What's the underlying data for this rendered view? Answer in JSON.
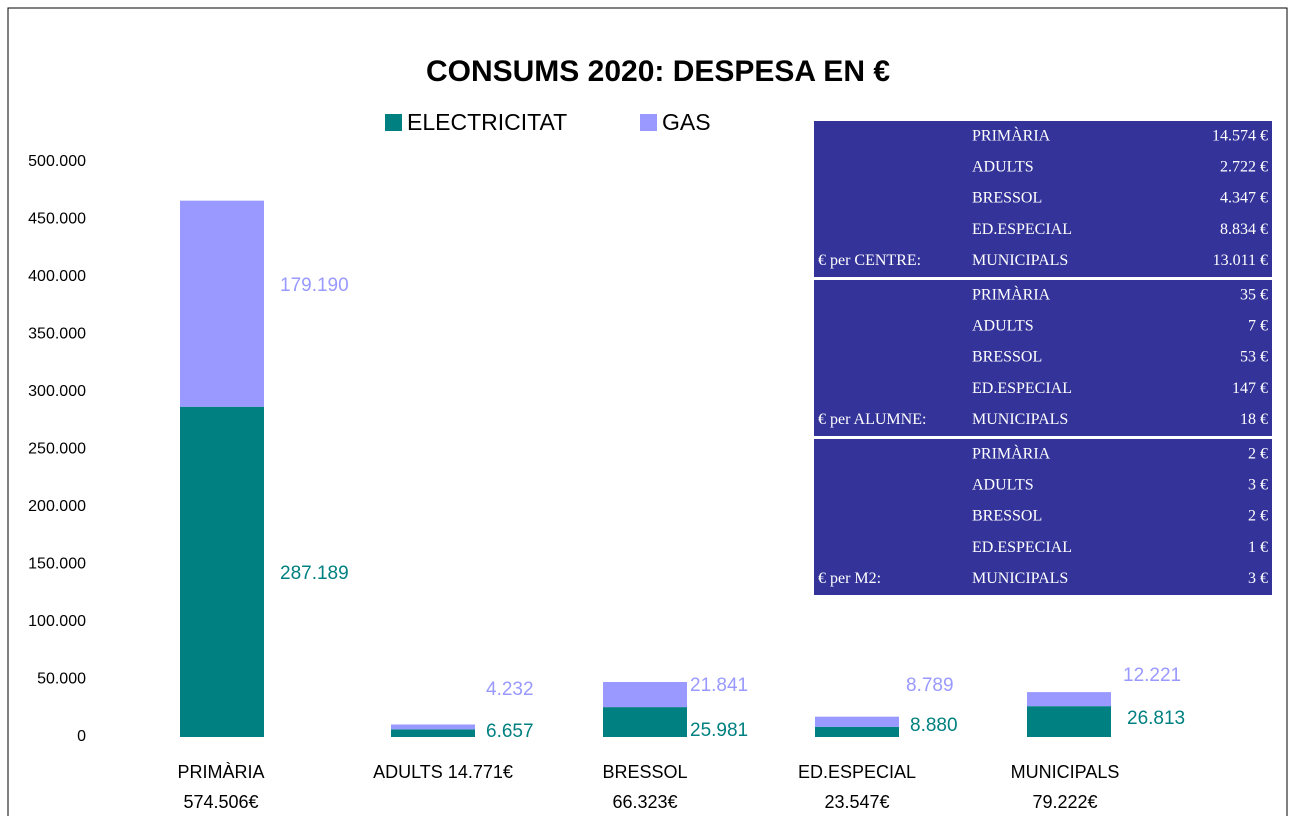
{
  "chart_data": {
    "type": "bar",
    "stacked": true,
    "title": "CONSUMS 2020: DESPESA EN €",
    "categories": [
      [
        "PRIMÀRIA",
        "574.506€"
      ],
      [
        "ADULTS 14.771€"
      ],
      [
        "BRESSOL",
        "66.323€"
      ],
      [
        "ED.ESPECIAL",
        "23.547€"
      ],
      [
        "MUNICIPALS",
        "79.222€"
      ]
    ],
    "series": [
      {
        "name": "ELECTRICITAT",
        "color": "#008080",
        "values": [
          287189,
          6657,
          25981,
          8880,
          26813
        ],
        "value_labels": [
          "287.189",
          "6.657",
          "25.981",
          "8.880",
          "26.813"
        ]
      },
      {
        "name": "GAS",
        "color": "#9999ff",
        "values": [
          179190,
          4232,
          21841,
          8789,
          12221
        ],
        "value_labels": [
          "179.190",
          "4.232",
          "21.841",
          "8.789",
          "12.221"
        ]
      }
    ],
    "ylim": [
      0,
      500000
    ],
    "yticks": [
      0,
      {
        "value": 50000,
        "label": "50.000"
      },
      {
        "value": 100000,
        "label": "100.000"
      },
      {
        "value": 150000,
        "label": "150.000"
      },
      {
        "value": 200000,
        "label": "200.000"
      },
      {
        "value": 250000,
        "label": "250.000"
      },
      {
        "value": 300000,
        "label": "300.000"
      },
      {
        "value": 350000,
        "label": "350.000"
      },
      {
        "value": 400000,
        "label": "400.000"
      },
      {
        "value": 450000,
        "label": "450.000"
      },
      {
        "value": 500000,
        "label": "500.000"
      }
    ],
    "grid": false,
    "legend": "top",
    "table": {
      "sections": [
        {
          "label": "€ per CENTRE:",
          "rows": [
            [
              "PRIMÀRIA",
              "14.574 €"
            ],
            [
              "ADULTS",
              "2.722 €"
            ],
            [
              "BRESSOL",
              "4.347 €"
            ],
            [
              "ED.ESPECIAL",
              "8.834 €"
            ],
            [
              "MUNICIPALS",
              "13.011 €"
            ]
          ]
        },
        {
          "label": "€ per ALUMNE:",
          "rows": [
            [
              "PRIMÀRIA",
              "35 €"
            ],
            [
              "ADULTS",
              "7 €"
            ],
            [
              "BRESSOL",
              "53 €"
            ],
            [
              "ED.ESPECIAL",
              "147 €"
            ],
            [
              "MUNICIPALS",
              "18 €"
            ]
          ]
        },
        {
          "label": "€ per M2:",
          "rows": [
            [
              "PRIMÀRIA",
              "2 €"
            ],
            [
              "ADULTS",
              "3 €"
            ],
            [
              "BRESSOL",
              "2 €"
            ],
            [
              "ED.ESPECIAL",
              "1 €"
            ],
            [
              "MUNICIPALS",
              "3 €"
            ]
          ]
        }
      ]
    }
  }
}
